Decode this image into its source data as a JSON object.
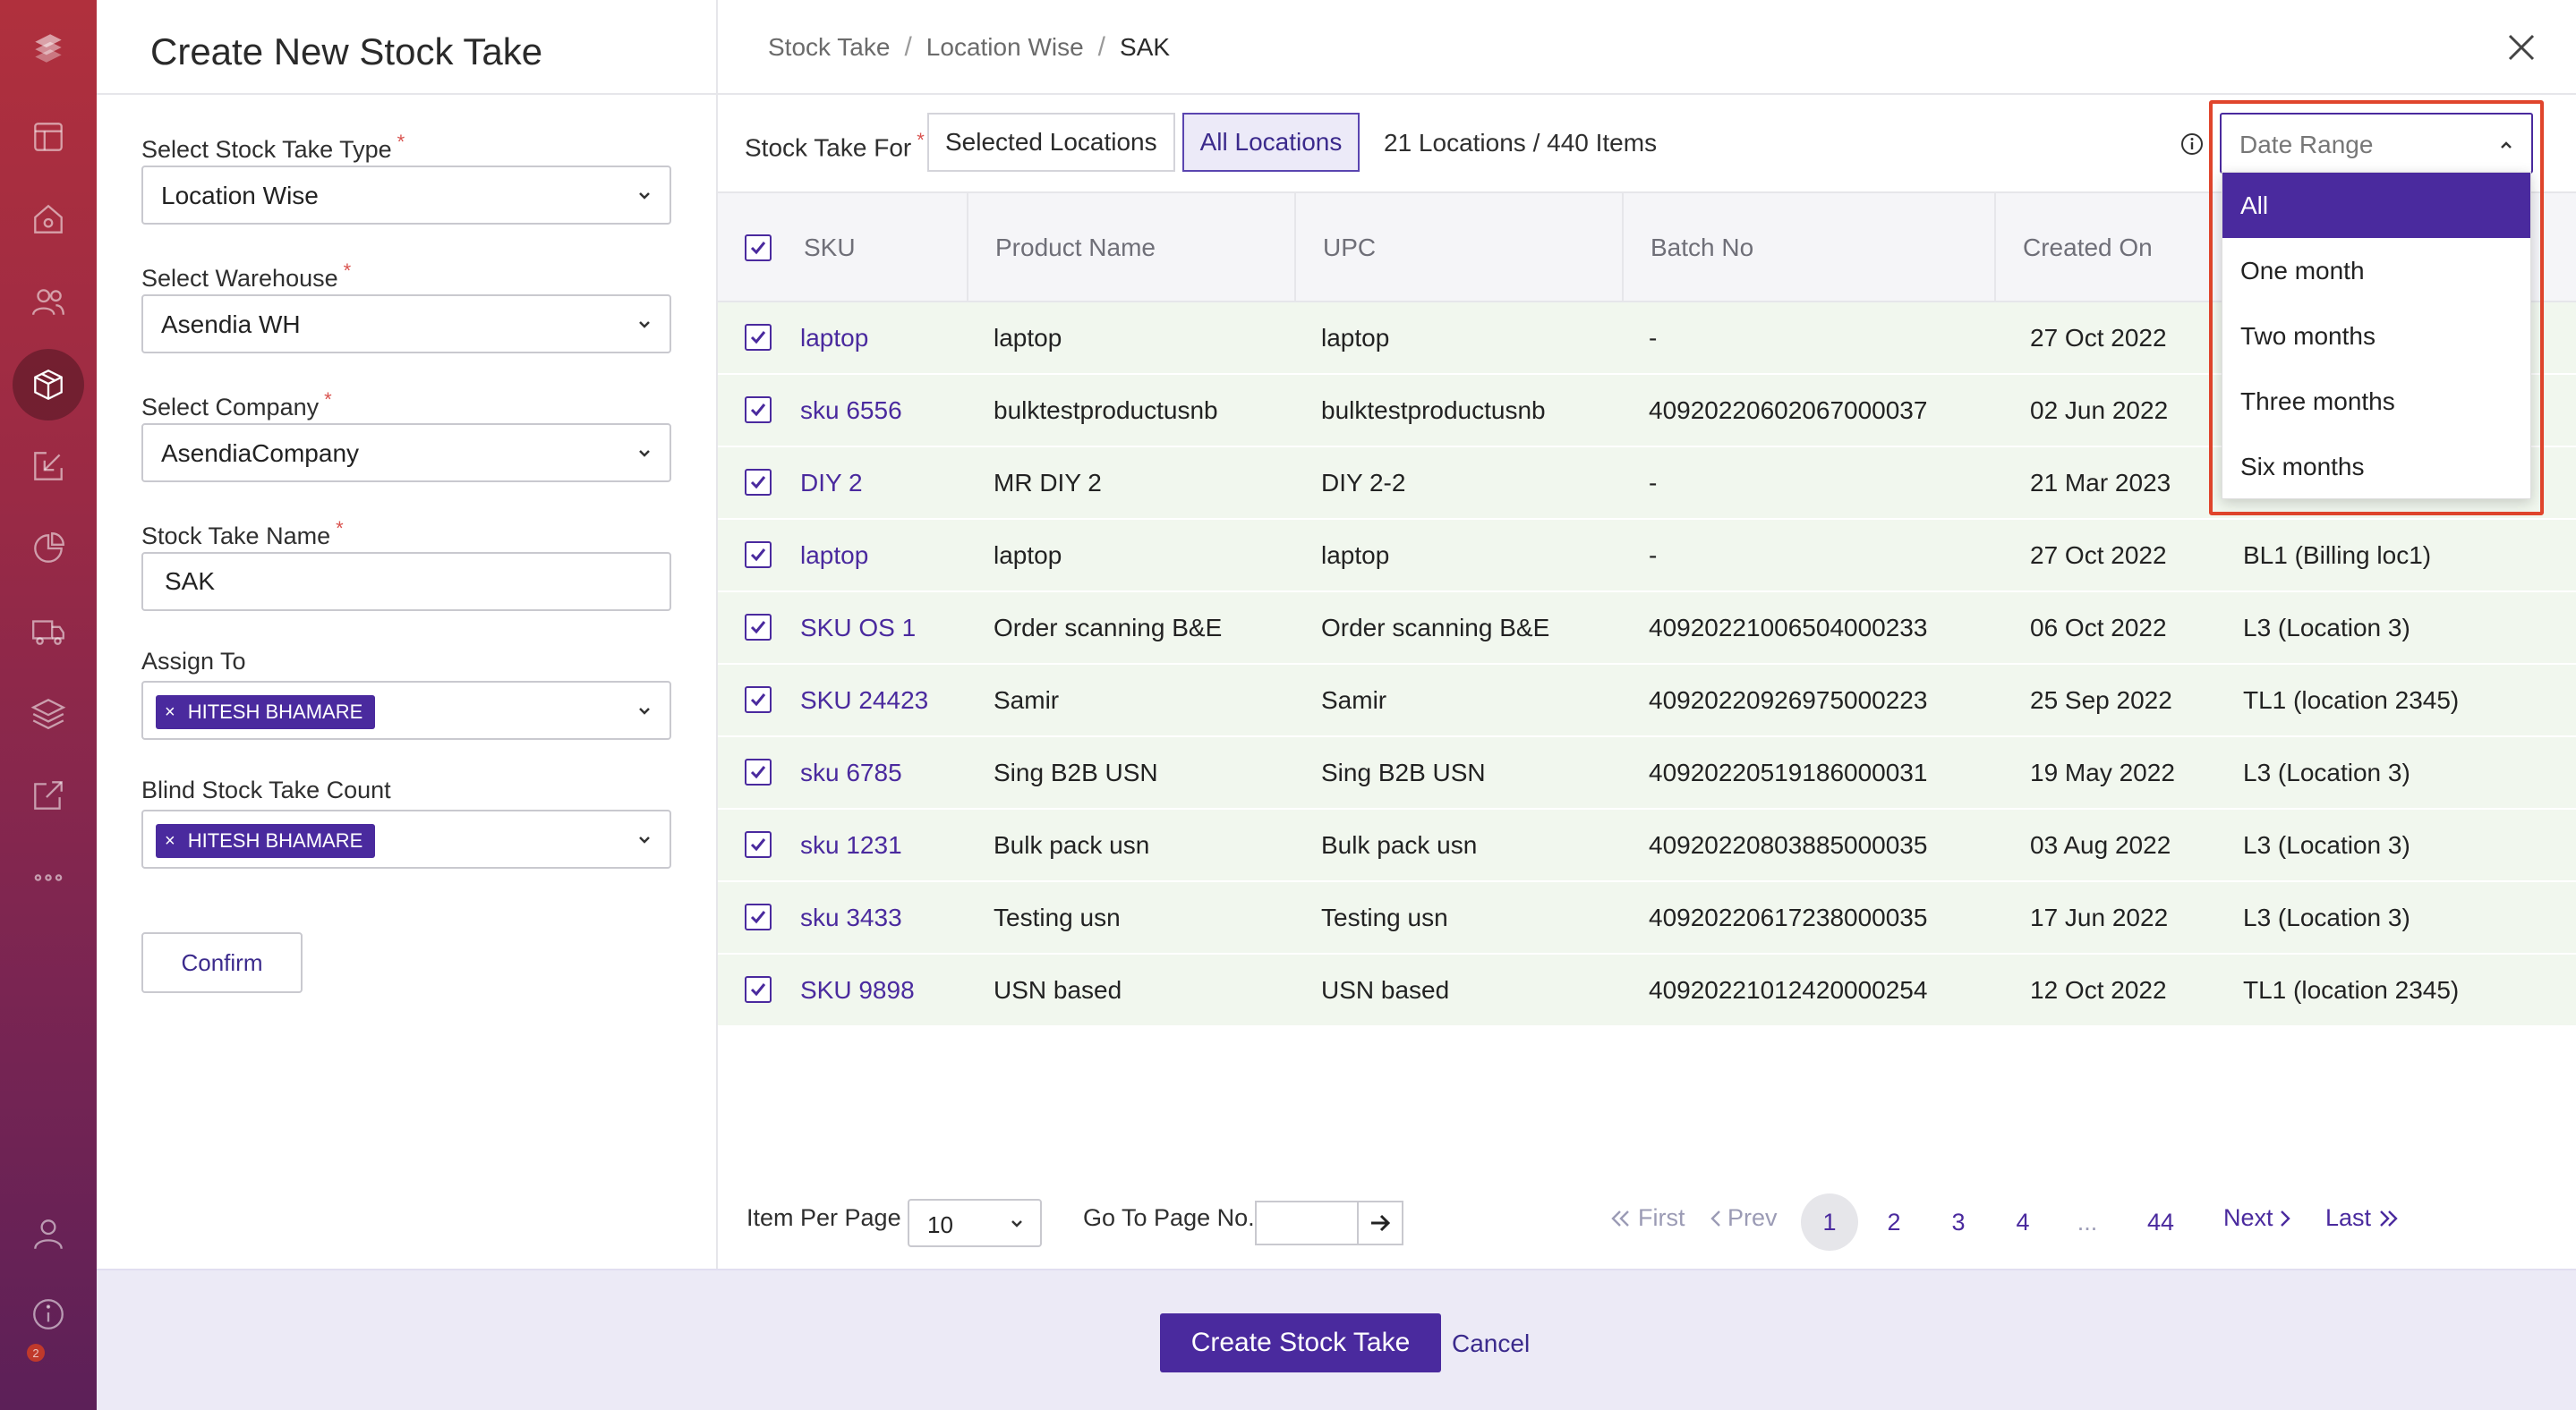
{
  "rail": {
    "icons": [
      "logo-icon",
      "dashboard-icon",
      "home-icon",
      "users-icon",
      "inventory-box-icon",
      "inbound-icon",
      "reports-pie-icon",
      "shipping-truck-icon",
      "layers-icon",
      "external-link-icon",
      "more-icon",
      "profile-icon",
      "info-icon"
    ],
    "badge": "2"
  },
  "form": {
    "title": "Create New Stock Take",
    "type_label": "Select Stock Take Type",
    "type_value": "Location Wise",
    "warehouse_label": "Select Warehouse",
    "warehouse_value": "Asendia WH",
    "company_label": "Select Company",
    "company_value": "AsendiaCompany",
    "name_label": "Stock Take Name",
    "name_value": "SAK",
    "assign_label": "Assign To",
    "assign_chip": "HITESH BHAMARE",
    "blind_label": "Blind Stock Take Count",
    "blind_chip": "HITESH BHAMARE",
    "required_mark": "*",
    "chip_remove": "×",
    "confirm_label": "Confirm"
  },
  "breadcrumb": {
    "items": [
      "Stock Take",
      "Location Wise",
      "SAK"
    ],
    "separator": "/"
  },
  "toolbar": {
    "for_label": "Stock Take For",
    "segments": [
      "Selected Locations",
      "All Locations"
    ],
    "active_segment": "All Locations",
    "count_text": "21 Locations / 440 Items"
  },
  "date_range": {
    "placeholder": "Date Range",
    "options": [
      "All",
      "One month",
      "Two months",
      "Three months",
      "Six months"
    ],
    "selected": "All"
  },
  "table": {
    "columns": [
      "SKU",
      "Product Name",
      "UPC",
      "Batch No",
      "Created On"
    ],
    "rows": [
      {
        "sku": "laptop",
        "product": "laptop",
        "upc": "laptop",
        "batch": "-",
        "created": "27 Oct 2022",
        "location": ""
      },
      {
        "sku": "sku 6556",
        "product": "bulktestproductusnb",
        "upc": "bulktestproductusnb",
        "batch": "40920220602067000037",
        "created": "02 Jun 2022",
        "location": ""
      },
      {
        "sku": "DIY 2",
        "product": "MR DIY 2",
        "upc": "DIY 2-2",
        "batch": "-",
        "created": "21 Mar 2023",
        "location": ""
      },
      {
        "sku": "laptop",
        "product": "laptop",
        "upc": "laptop",
        "batch": "-",
        "created": "27 Oct 2022",
        "location": "BL1 (Billing loc1)"
      },
      {
        "sku": "SKU OS 1",
        "product": "Order scanning B&E",
        "upc": "Order scanning B&E",
        "batch": "40920221006504000233",
        "created": "06 Oct 2022",
        "location": "L3 (Location 3)"
      },
      {
        "sku": "SKU 24423",
        "product": "Samir",
        "upc": "Samir",
        "batch": "40920220926975000223",
        "created": "25 Sep 2022",
        "location": "TL1 (location 2345)"
      },
      {
        "sku": "sku 6785",
        "product": "Sing B2B USN",
        "upc": "Sing B2B USN",
        "batch": "40920220519186000031",
        "created": "19 May 2022",
        "location": "L3 (Location 3)"
      },
      {
        "sku": "sku 1231",
        "product": "Bulk pack usn",
        "upc": "Bulk pack usn",
        "batch": "40920220803885000035",
        "created": "03 Aug 2022",
        "location": "L3 (Location 3)"
      },
      {
        "sku": "sku 3433",
        "product": "Testing usn",
        "upc": "Testing usn",
        "batch": "40920220617238000035",
        "created": "17 Jun 2022",
        "location": "L3 (Location 3)"
      },
      {
        "sku": "SKU 9898",
        "product": "USN based",
        "upc": "USN based",
        "batch": "40920221012420000254",
        "created": "12 Oct 2022",
        "location": "TL1 (location 2345)"
      }
    ]
  },
  "pagination": {
    "per_page_label": "Item Per Page",
    "per_page_value": "10",
    "goto_label": "Go To Page No.",
    "first": "First",
    "prev": "Prev",
    "pages": [
      "1",
      "2",
      "3",
      "4",
      "...",
      "44"
    ],
    "current": "1",
    "next": "Next",
    "last": "Last"
  },
  "footer": {
    "create_label": "Create Stock Take",
    "cancel_label": "Cancel"
  },
  "colors": {
    "primary": "#4a2a9e",
    "row_bg": "#f1f7ee",
    "highlight": "#e0452c"
  }
}
